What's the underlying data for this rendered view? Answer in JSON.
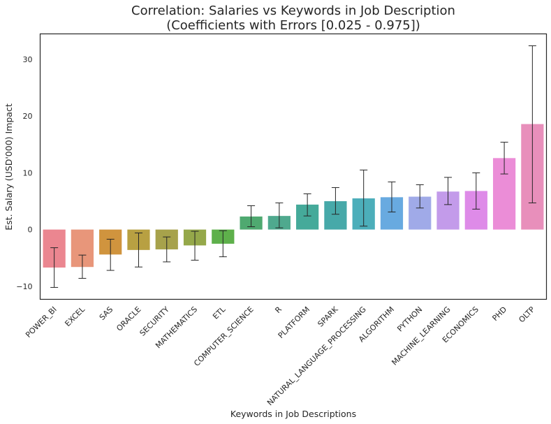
{
  "chart_data": {
    "type": "bar",
    "title_line1": "Correlation: Salaries vs Keywords in Job Description",
    "title_line2": "(Coefficients with Errors [0.025 - 0.975])",
    "xlabel": "Keywords in Job Descriptions",
    "ylabel": "Est. Salary (USD'000) Impact",
    "ylim": [
      -12.3,
      34.5
    ],
    "yticks": [
      -10,
      0,
      10,
      20,
      30
    ],
    "grid": false,
    "legend": "none",
    "categories": [
      "POWER_BI",
      "EXCEL",
      "SAS",
      "ORACLE",
      "SECURITY",
      "MATHEMATICS",
      "ETL",
      "COMPUTER_SCIENCE",
      "R",
      "PLATFORM",
      "SPARK",
      "NATURAL_LANGUAGE_PROCESSING",
      "ALGORITHM",
      "PYTHON",
      "MACHINE_LEARNING",
      "ECONOMICS",
      "PHD",
      "OLTP"
    ],
    "values": [
      -6.7,
      -6.6,
      -4.4,
      -3.6,
      -3.5,
      -2.8,
      -2.5,
      2.3,
      2.4,
      4.4,
      5.0,
      5.5,
      5.7,
      5.8,
      6.7,
      6.8,
      12.6,
      18.6
    ],
    "error_low": [
      -10.2,
      -8.6,
      -7.2,
      -6.6,
      -5.7,
      -5.4,
      -4.8,
      0.5,
      0.3,
      2.4,
      2.7,
      0.6,
      3.1,
      3.8,
      4.4,
      3.6,
      9.8,
      4.7
    ],
    "error_high": [
      -3.2,
      -4.5,
      -1.7,
      -0.6,
      -1.3,
      -0.3,
      -0.2,
      4.2,
      4.7,
      6.3,
      7.4,
      10.5,
      8.4,
      7.9,
      9.2,
      10.0,
      15.4,
      32.4
    ],
    "colors": [
      "#eb8690",
      "#e8967a",
      "#d0943e",
      "#b8a042",
      "#a7a24b",
      "#95a84a",
      "#5eb04b",
      "#4fa970",
      "#4fa98e",
      "#45aa9a",
      "#47a9a9",
      "#4caeba",
      "#68aae0",
      "#a0aae8",
      "#c39bea",
      "#de8be8",
      "#eb8dd7",
      "#e88fbb"
    ]
  }
}
